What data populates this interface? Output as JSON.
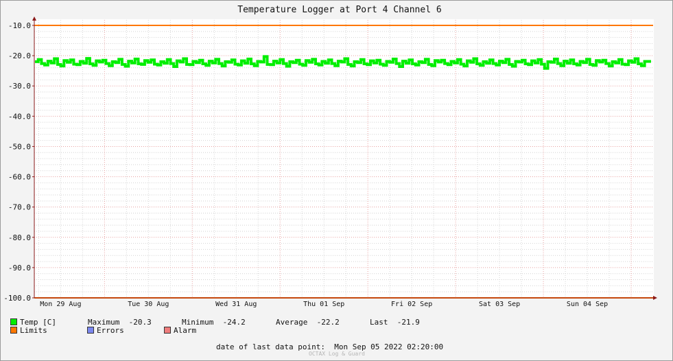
{
  "chart_data": {
    "type": "line",
    "title": "Temperature Logger at Port 4 Channel 6",
    "xlabel": "",
    "ylabel": "",
    "ylim": [
      -100,
      -10
    ],
    "y_ticks": [
      "-10.0",
      "-20.0",
      "-30.0",
      "-40.0",
      "-50.0",
      "-60.0",
      "-70.0",
      "-80.0",
      "-90.0",
      "-100.0"
    ],
    "x_ticks": [
      "Mon 29 Aug",
      "Tue 30 Aug",
      "Wed 31 Aug",
      "Thu 01 Sep",
      "Fri 02 Sep",
      "Sat 03 Sep",
      "Sun 04 Sep"
    ],
    "grid": true,
    "legend_position": "bottom-left",
    "series": [
      {
        "name": "Temp [C]",
        "color": "#00ee00",
        "values": [
          -22.0,
          -21.3,
          -22.6,
          -23.1,
          -21.8,
          -22.4,
          -21.0,
          -22.9,
          -23.4,
          -21.6,
          -22.2,
          -21.4,
          -22.8,
          -23.0,
          -21.9,
          -22.5,
          -20.9,
          -22.7,
          -23.2,
          -21.7,
          -22.1,
          -21.5,
          -22.6,
          -23.3,
          -22.0,
          -22.3,
          -21.2,
          -22.9,
          -23.5,
          -21.8,
          -22.4,
          -21.1,
          -22.7,
          -22.9,
          -21.6,
          -22.2,
          -21.4,
          -22.8,
          -23.1,
          -22.0,
          -22.5,
          -21.3,
          -22.6,
          -23.6,
          -21.7,
          -22.1,
          -21.0,
          -22.9,
          -23.0,
          -21.9,
          -22.3,
          -21.5,
          -22.7,
          -23.2,
          -21.8,
          -22.4,
          -21.2,
          -22.6,
          -23.4,
          -22.0,
          -22.2,
          -21.4,
          -22.8,
          -23.1,
          -21.7,
          -22.5,
          -21.1,
          -22.7,
          -23.3,
          -21.9,
          -22.1,
          -20.3,
          -22.9,
          -23.0,
          -21.8,
          -22.4,
          -21.3,
          -22.6,
          -23.5,
          -22.0,
          -22.3,
          -21.5,
          -22.8,
          -23.2,
          -21.6,
          -22.2,
          -21.2,
          -22.7,
          -23.1,
          -21.9,
          -22.5,
          -21.4,
          -22.6,
          -23.3,
          -21.8,
          -22.1,
          -21.0,
          -22.9,
          -23.4,
          -22.0,
          -22.3,
          -21.3,
          -22.7,
          -23.0,
          -21.7,
          -22.4,
          -21.5,
          -22.8,
          -23.2,
          -21.9,
          -22.2,
          -21.1,
          -22.6,
          -23.6,
          -21.8,
          -22.5,
          -21.4,
          -22.7,
          -23.1,
          -22.0,
          -22.3,
          -21.2,
          -22.9,
          -23.3,
          -21.6,
          -22.1,
          -21.5,
          -22.6,
          -23.0,
          -21.9,
          -22.4,
          -21.3,
          -22.8,
          -23.4,
          -21.7,
          -22.2,
          -21.0,
          -22.7,
          -23.2,
          -22.0,
          -22.5,
          -21.4,
          -22.6,
          -23.1,
          -21.8,
          -22.3,
          -21.2,
          -22.9,
          -23.5,
          -21.9,
          -22.1,
          -21.5,
          -22.7,
          -23.0,
          -21.7,
          -22.4,
          -21.3,
          -22.8,
          -24.2,
          -22.0,
          -22.2,
          -21.1,
          -22.6,
          -23.3,
          -21.8,
          -22.5,
          -21.4,
          -22.7,
          -23.1,
          -21.9,
          -22.3,
          -21.2,
          -22.9,
          -23.2,
          -21.6,
          -22.1,
          -21.5,
          -22.6,
          -23.4,
          -22.0,
          -22.4,
          -21.3,
          -22.8,
          -23.0,
          -21.7,
          -22.2,
          -21.0,
          -22.7,
          -23.3,
          -21.9,
          -21.9
        ]
      },
      {
        "name": "Limits",
        "color": "#ff7700",
        "values": [
          -10.0,
          -100.0
        ]
      },
      {
        "name": "Errors",
        "color": "#7b87ee"
      },
      {
        "name": "Alarm",
        "color": "#ef7c7c"
      }
    ],
    "stats": {
      "max_label": "Maximum",
      "max": "-20.3",
      "min_label": "Minimum",
      "min": "-24.2",
      "avg_label": "Average",
      "avg": "-22.2",
      "last_label": "Last",
      "last": "-21.9"
    }
  },
  "footer": {
    "last_point_label": "date of last data point:",
    "last_point_value": "Mon Sep 05 2022 02:20:00",
    "brand": "OCTAX Log & Guard"
  }
}
